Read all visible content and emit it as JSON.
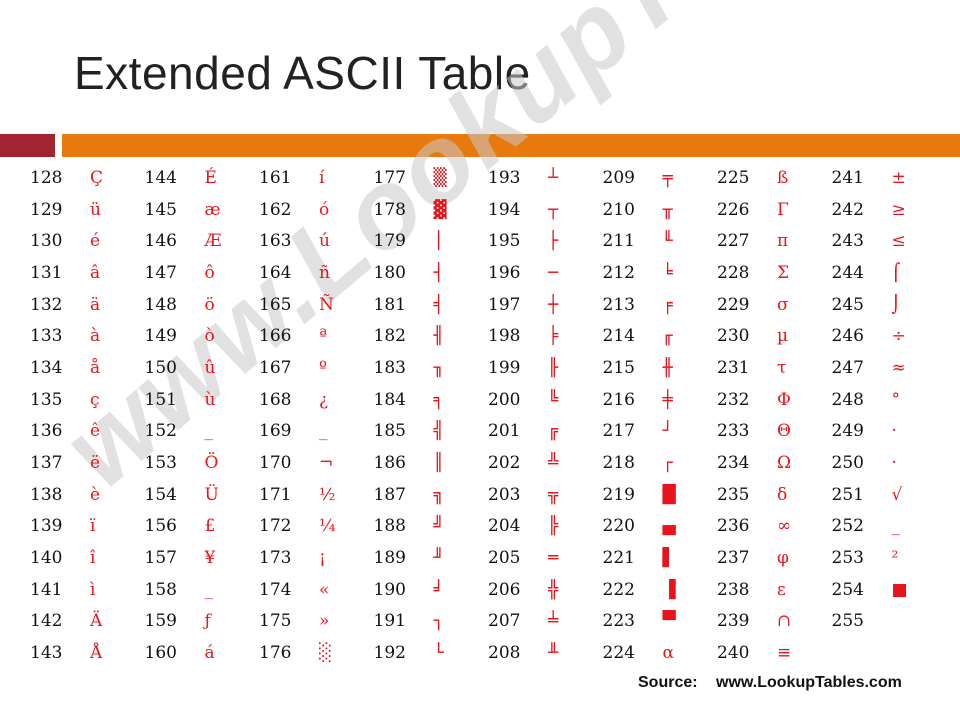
{
  "title": "Extended ASCII Table",
  "colors": {
    "bar_left": "#a3232e",
    "bar_right": "#e8790e",
    "char_color": "#e8141b"
  },
  "watermark": "www.LookupTables.com",
  "columns": [
    [
      [
        "128",
        "Ç"
      ],
      [
        "129",
        "ü"
      ],
      [
        "130",
        "é"
      ],
      [
        "131",
        "â"
      ],
      [
        "132",
        "ä"
      ],
      [
        "133",
        "à"
      ],
      [
        "134",
        "å"
      ],
      [
        "135",
        "ç"
      ],
      [
        "136",
        "ê"
      ],
      [
        "137",
        "ë"
      ],
      [
        "138",
        "è"
      ],
      [
        "139",
        "ï"
      ],
      [
        "140",
        "î"
      ],
      [
        "141",
        "ì"
      ],
      [
        "142",
        "Ä"
      ],
      [
        "143",
        "Å"
      ]
    ],
    [
      [
        "144",
        "É"
      ],
      [
        "145",
        "æ"
      ],
      [
        "146",
        "Æ"
      ],
      [
        "147",
        "ô"
      ],
      [
        "148",
        "ö"
      ],
      [
        "149",
        "ò"
      ],
      [
        "150",
        "û"
      ],
      [
        "151",
        "ù"
      ],
      [
        "152",
        "_"
      ],
      [
        "153",
        "Ö"
      ],
      [
        "154",
        "Ü"
      ],
      [
        "156",
        "£"
      ],
      [
        "157",
        "¥"
      ],
      [
        "158",
        "_"
      ],
      [
        "159",
        "ƒ"
      ],
      [
        "160",
        "á"
      ]
    ],
    [
      [
        "161",
        "í"
      ],
      [
        "162",
        "ó"
      ],
      [
        "163",
        "ú"
      ],
      [
        "164",
        "ñ"
      ],
      [
        "165",
        "Ñ"
      ],
      [
        "166",
        "ª"
      ],
      [
        "167",
        "º"
      ],
      [
        "168",
        "¿"
      ],
      [
        "169",
        "_"
      ],
      [
        "170",
        "¬"
      ],
      [
        "171",
        "½"
      ],
      [
        "172",
        "¼"
      ],
      [
        "173",
        "¡"
      ],
      [
        "174",
        "«"
      ],
      [
        "175",
        "»"
      ],
      [
        "176",
        "░"
      ]
    ],
    [
      [
        "177",
        "▒"
      ],
      [
        "178",
        "▓"
      ],
      [
        "179",
        "│"
      ],
      [
        "180",
        "┤"
      ],
      [
        "181",
        "╡"
      ],
      [
        "182",
        "╢"
      ],
      [
        "183",
        "╖"
      ],
      [
        "184",
        "╕"
      ],
      [
        "185",
        "╣"
      ],
      [
        "186",
        "║"
      ],
      [
        "187",
        "╗"
      ],
      [
        "188",
        "╝"
      ],
      [
        "189",
        "╜"
      ],
      [
        "190",
        "╛"
      ],
      [
        "191",
        "┐"
      ],
      [
        "192",
        "└"
      ]
    ],
    [
      [
        "193",
        "┴"
      ],
      [
        "194",
        "┬"
      ],
      [
        "195",
        "├"
      ],
      [
        "196",
        "─"
      ],
      [
        "197",
        "┼"
      ],
      [
        "198",
        "╞"
      ],
      [
        "199",
        "╟"
      ],
      [
        "200",
        "╚"
      ],
      [
        "201",
        "╔"
      ],
      [
        "202",
        "╩"
      ],
      [
        "203",
        "╦"
      ],
      [
        "204",
        "╠"
      ],
      [
        "205",
        "═"
      ],
      [
        "206",
        "╬"
      ],
      [
        "207",
        "╧"
      ],
      [
        "208",
        "╨"
      ]
    ],
    [
      [
        "209",
        "╤"
      ],
      [
        "210",
        "╥"
      ],
      [
        "211",
        "╙"
      ],
      [
        "212",
        "╘"
      ],
      [
        "213",
        "╒"
      ],
      [
        "214",
        "╓"
      ],
      [
        "215",
        "╫"
      ],
      [
        "216",
        "╪"
      ],
      [
        "217",
        "┘"
      ],
      [
        "218",
        "┌"
      ],
      [
        "219",
        "█"
      ],
      [
        "220",
        "▄"
      ],
      [
        "221",
        "▌"
      ],
      [
        "222",
        "▐"
      ],
      [
        "223",
        "▀"
      ],
      [
        "224",
        "α"
      ]
    ],
    [
      [
        "225",
        "ß"
      ],
      [
        "226",
        "Γ"
      ],
      [
        "227",
        "π"
      ],
      [
        "228",
        "Σ"
      ],
      [
        "229",
        "σ"
      ],
      [
        "230",
        "µ"
      ],
      [
        "231",
        "τ"
      ],
      [
        "232",
        "Φ"
      ],
      [
        "233",
        "Θ"
      ],
      [
        "234",
        "Ω"
      ],
      [
        "235",
        "δ"
      ],
      [
        "236",
        "∞"
      ],
      [
        "237",
        "φ"
      ],
      [
        "238",
        "ε"
      ],
      [
        "239",
        "∩"
      ],
      [
        "240",
        "≡"
      ]
    ],
    [
      [
        "241",
        "±"
      ],
      [
        "242",
        "≥"
      ],
      [
        "243",
        "≤"
      ],
      [
        "244",
        "⌠"
      ],
      [
        "245",
        "⌡"
      ],
      [
        "246",
        "÷"
      ],
      [
        "247",
        "≈"
      ],
      [
        "248",
        "°"
      ],
      [
        "249",
        "·"
      ],
      [
        "250",
        "·"
      ],
      [
        "251",
        "√"
      ],
      [
        "252",
        "_"
      ],
      [
        "253",
        "²"
      ],
      [
        "254",
        "■"
      ],
      [
        "255",
        ""
      ]
    ]
  ],
  "source": {
    "label": "Source:",
    "url": "www.LookupTables.com"
  }
}
